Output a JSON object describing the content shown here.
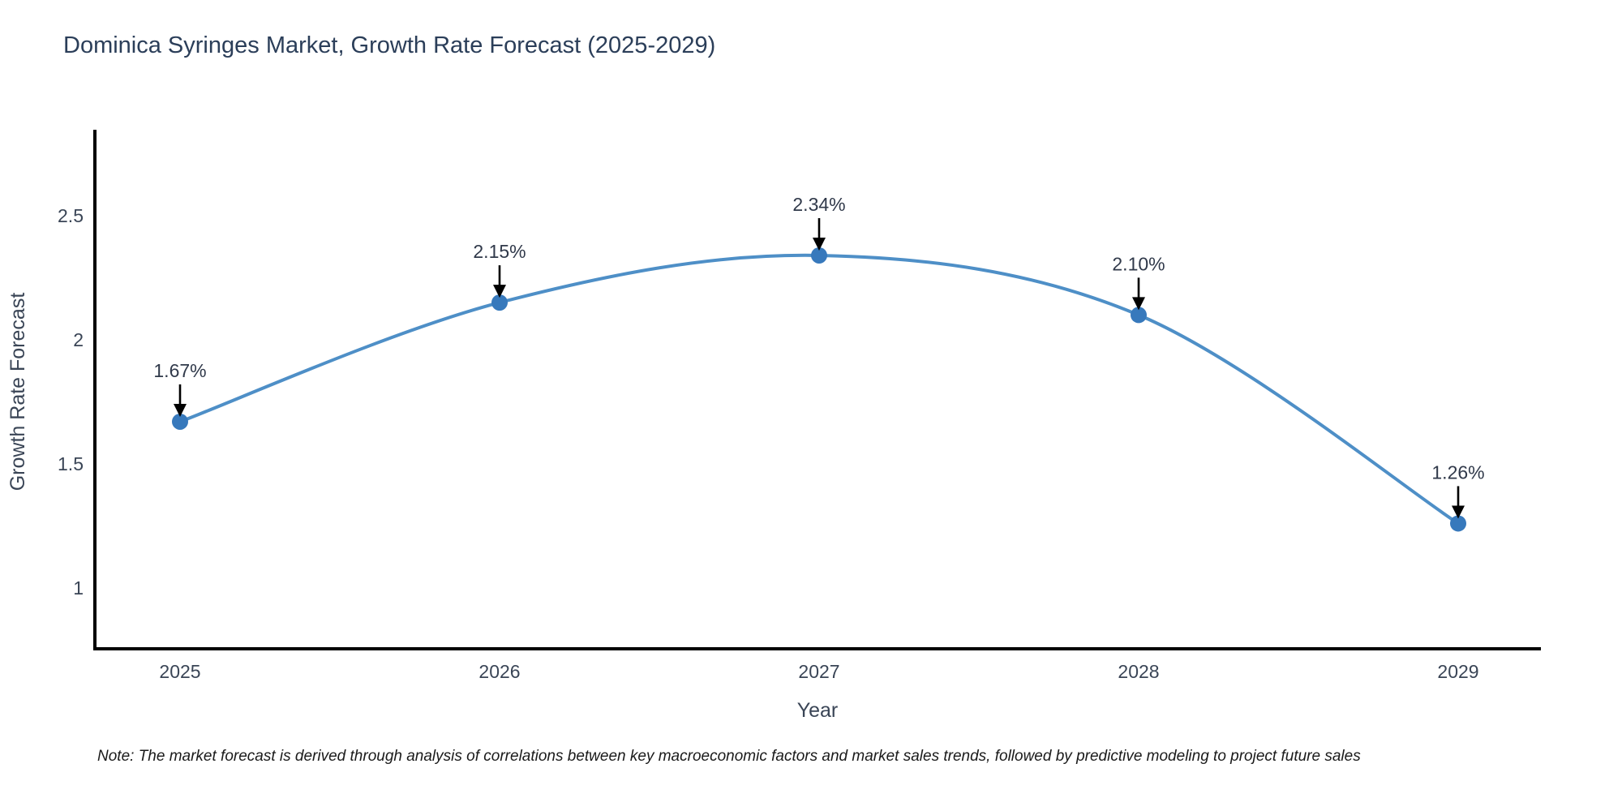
{
  "chart_data": {
    "type": "line",
    "title": "Dominica Syringes Market, Growth Rate Forecast (2025-2029)",
    "xlabel": "Year",
    "ylabel": "Growth Rate Forecast",
    "categories": [
      "2025",
      "2026",
      "2027",
      "2028",
      "2029"
    ],
    "values": [
      1.67,
      2.15,
      2.34,
      2.1,
      1.26
    ],
    "point_labels": [
      "1.67%",
      "2.15%",
      "2.34%",
      "2.10%",
      "1.26%"
    ],
    "yticks": [
      1,
      1.5,
      2,
      2.5
    ],
    "ytick_labels": [
      "1",
      "1.5",
      "2",
      "2.5"
    ],
    "ylim": [
      0.76,
      2.85
    ],
    "grid": false,
    "legend": "none",
    "line_shape": "spline",
    "annotation_arrows": true,
    "colors": {
      "line": "#4e8fc7",
      "marker": "#3779bc",
      "arrow": "#000000",
      "axis": "#000000",
      "title": "#2b3e59",
      "tick": "#3a4556"
    },
    "note": "Note: The market forecast is derived through analysis of correlations between key macroeconomic factors and market sales trends, followed by predictive modeling to project future sales"
  }
}
